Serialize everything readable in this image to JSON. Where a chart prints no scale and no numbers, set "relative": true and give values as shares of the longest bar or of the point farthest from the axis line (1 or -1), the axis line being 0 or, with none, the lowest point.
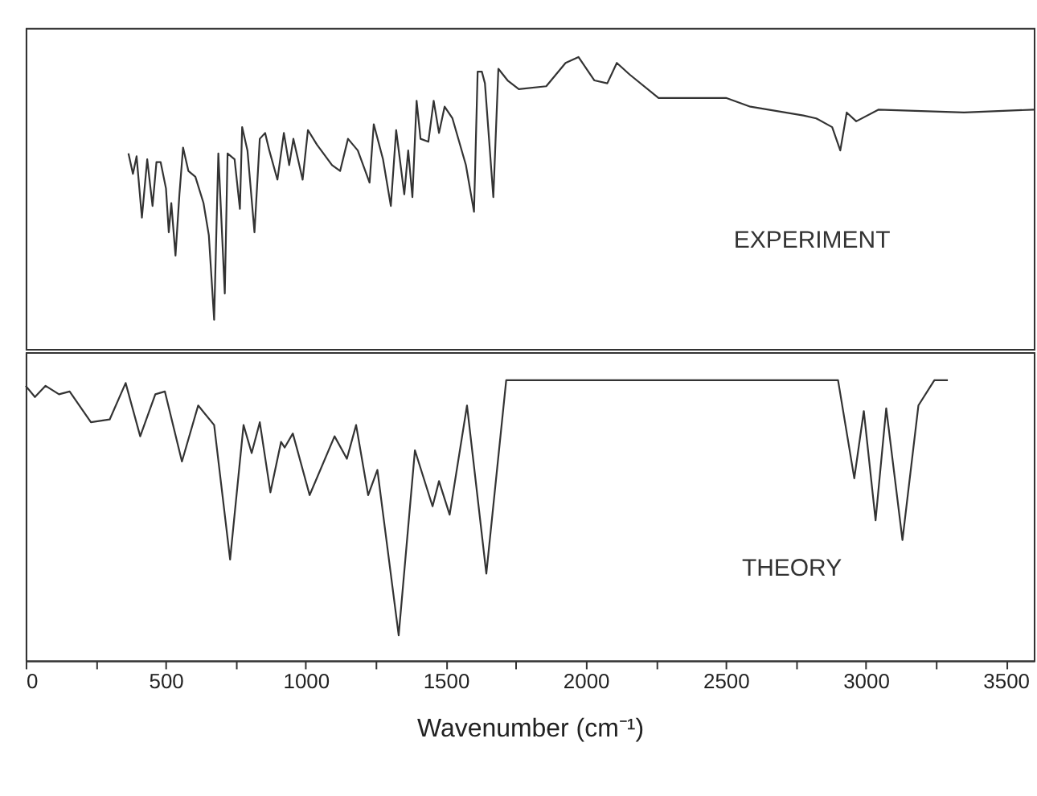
{
  "chart_data": [
    {
      "type": "line",
      "relative": true,
      "tick_labels": false,
      "xlim": [
        0,
        3600
      ],
      "series": [
        {
          "name": "EXPERIMENT",
          "color": "#333333",
          "x": [
            367,
            383,
            396,
            415,
            434,
            453,
            467,
            482,
            501,
            511,
            520,
            535,
            549,
            562,
            581,
            606,
            635,
            654,
            673,
            688,
            711,
            721,
            746,
            765,
            773,
            792,
            817,
            836,
            855,
            870,
            899,
            922,
            941,
            956,
            989,
            1008,
            1040,
            1094,
            1123,
            1151,
            1186,
            1228,
            1243,
            1276,
            1304,
            1323,
            1352,
            1366,
            1381,
            1396,
            1410,
            1438,
            1457,
            1476,
            1496,
            1524,
            1572,
            1601,
            1614,
            1629,
            1640,
            1670,
            1688,
            1721,
            1761,
            1859,
            1928,
            1974,
            2031,
            2077,
            2111,
            2157,
            2260,
            2501,
            2588,
            2777,
            2823,
            2880,
            2909,
            2932,
            2966,
            3046,
            3351,
            3600
          ],
          "values": [
            0.67,
            0.6,
            0.66,
            0.45,
            0.65,
            0.49,
            0.64,
            0.64,
            0.55,
            0.4,
            0.5,
            0.32,
            0.53,
            0.69,
            0.61,
            0.59,
            0.5,
            0.39,
            0.1,
            0.67,
            0.19,
            0.67,
            0.65,
            0.48,
            0.76,
            0.68,
            0.4,
            0.72,
            0.74,
            0.68,
            0.58,
            0.74,
            0.63,
            0.72,
            0.58,
            0.75,
            0.7,
            0.63,
            0.61,
            0.72,
            0.68,
            0.57,
            0.77,
            0.65,
            0.49,
            0.75,
            0.53,
            0.68,
            0.52,
            0.85,
            0.72,
            0.71,
            0.85,
            0.74,
            0.83,
            0.79,
            0.63,
            0.47,
            0.95,
            0.95,
            0.91,
            0.52,
            0.96,
            0.92,
            0.89,
            0.9,
            0.98,
            1.0,
            0.92,
            0.91,
            0.98,
            0.94,
            0.86,
            0.86,
            0.83,
            0.8,
            0.79,
            0.76,
            0.68,
            0.81,
            0.78,
            0.82,
            0.81,
            0.82
          ]
        }
      ]
    },
    {
      "type": "line",
      "relative": true,
      "tick_labels": "x",
      "xlim": [
        0,
        3600
      ],
      "xlabel": "Wavenumber (cm⁻¹)",
      "xticks": [
        0,
        {
          "value": 250,
          "label": null
        },
        500,
        {
          "value": 750,
          "label": null
        },
        1000,
        {
          "value": 1250,
          "label": null
        },
        1500,
        {
          "value": 1750,
          "label": null
        },
        2000,
        {
          "value": 2250,
          "label": null
        },
        2500,
        {
          "value": 2750,
          "label": null
        },
        3000,
        {
          "value": 3250,
          "label": null
        },
        3500
      ],
      "series": [
        {
          "name": "THEORY",
          "color": "#333333",
          "x": [
            0,
            33,
            71,
            119,
            157,
            233,
            300,
            357,
            409,
            463,
            497,
            558,
            616,
            673,
            730,
            778,
            807,
            836,
            874,
            912,
            925,
            954,
            1014,
            1103,
            1147,
            1180,
            1223,
            1256,
            1332,
            1390,
            1453,
            1476,
            1514,
            1576,
            1645,
            1716,
            2901,
            2959,
            2993,
            3035,
            3073,
            3131,
            3188,
            3245,
            3293
          ],
          "values": [
            0.98,
            0.94,
            0.98,
            0.95,
            0.96,
            0.85,
            0.86,
            0.99,
            0.8,
            0.95,
            0.96,
            0.71,
            0.91,
            0.84,
            0.36,
            0.84,
            0.74,
            0.85,
            0.6,
            0.78,
            0.76,
            0.81,
            0.59,
            0.8,
            0.72,
            0.84,
            0.59,
            0.68,
            0.09,
            0.75,
            0.55,
            0.64,
            0.52,
            0.91,
            0.31,
            1.0,
            1.0,
            0.65,
            0.89,
            0.5,
            0.9,
            0.43,
            0.91,
            1.0,
            1.0
          ]
        }
      ]
    }
  ]
}
